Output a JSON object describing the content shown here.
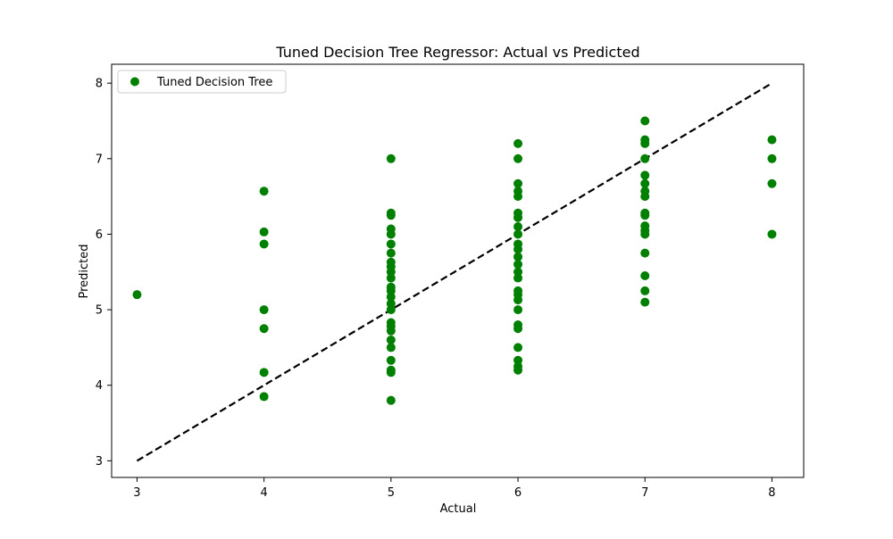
{
  "chart_data": {
    "type": "scatter",
    "title": "Tuned Decision Tree Regressor: Actual vs Predicted",
    "xlabel": "Actual",
    "ylabel": "Predicted",
    "xlim": [
      2.8,
      8.25
    ],
    "ylim": [
      2.78,
      8.25
    ],
    "xticks": [
      3,
      4,
      5,
      6,
      7,
      8
    ],
    "yticks": [
      3,
      4,
      5,
      6,
      7,
      8
    ],
    "grid": false,
    "legend": {
      "position": "top-left",
      "entries": [
        "Tuned Decision Tree"
      ]
    },
    "colors": {
      "points": "#008000",
      "reference_line": "#000000"
    },
    "reference_line": {
      "style": "dashed",
      "from": [
        3,
        3
      ],
      "to": [
        8,
        8
      ]
    },
    "series": [
      {
        "name": "Tuned Decision Tree",
        "points": [
          [
            3,
            5.2
          ],
          [
            4,
            6.57
          ],
          [
            4,
            6.03
          ],
          [
            4,
            5.87
          ],
          [
            4,
            5.0
          ],
          [
            4,
            4.75
          ],
          [
            4,
            4.17
          ],
          [
            4,
            3.85
          ],
          [
            5,
            7.0
          ],
          [
            5,
            6.28
          ],
          [
            5,
            6.25
          ],
          [
            5,
            6.07
          ],
          [
            5,
            6.0
          ],
          [
            5,
            5.87
          ],
          [
            5,
            5.75
          ],
          [
            5,
            5.63
          ],
          [
            5,
            5.57
          ],
          [
            5,
            5.5
          ],
          [
            5,
            5.42
          ],
          [
            5,
            5.3
          ],
          [
            5,
            5.25
          ],
          [
            5,
            5.17
          ],
          [
            5,
            5.08
          ],
          [
            5,
            5.0
          ],
          [
            5,
            4.83
          ],
          [
            5,
            4.78
          ],
          [
            5,
            4.72
          ],
          [
            5,
            4.6
          ],
          [
            5,
            4.5
          ],
          [
            5,
            4.33
          ],
          [
            5,
            4.2
          ],
          [
            5,
            4.17
          ],
          [
            5,
            3.8
          ],
          [
            6,
            7.2
          ],
          [
            6,
            7.0
          ],
          [
            6,
            6.67
          ],
          [
            6,
            6.57
          ],
          [
            6,
            6.5
          ],
          [
            6,
            6.28
          ],
          [
            6,
            6.22
          ],
          [
            6,
            6.1
          ],
          [
            6,
            6.0
          ],
          [
            6,
            5.87
          ],
          [
            6,
            5.8
          ],
          [
            6,
            5.7
          ],
          [
            6,
            5.6
          ],
          [
            6,
            5.5
          ],
          [
            6,
            5.42
          ],
          [
            6,
            5.25
          ],
          [
            6,
            5.2
          ],
          [
            6,
            5.13
          ],
          [
            6,
            5.0
          ],
          [
            6,
            4.8
          ],
          [
            6,
            4.75
          ],
          [
            6,
            4.5
          ],
          [
            6,
            4.33
          ],
          [
            6,
            4.25
          ],
          [
            6,
            4.2
          ],
          [
            7,
            7.5
          ],
          [
            7,
            7.25
          ],
          [
            7,
            7.2
          ],
          [
            7,
            7.0
          ],
          [
            7,
            6.78
          ],
          [
            7,
            6.67
          ],
          [
            7,
            6.57
          ],
          [
            7,
            6.5
          ],
          [
            7,
            6.28
          ],
          [
            7,
            6.25
          ],
          [
            7,
            6.11
          ],
          [
            7,
            6.05
          ],
          [
            7,
            6.0
          ],
          [
            7,
            5.75
          ],
          [
            7,
            5.45
          ],
          [
            7,
            5.25
          ],
          [
            7,
            5.1
          ],
          [
            8,
            7.25
          ],
          [
            8,
            7.0
          ],
          [
            8,
            6.67
          ],
          [
            8,
            6.0
          ]
        ]
      }
    ]
  }
}
